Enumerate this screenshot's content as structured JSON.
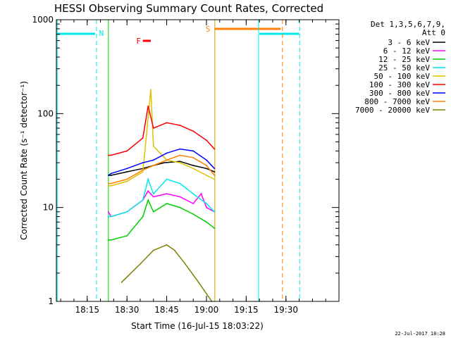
{
  "chart_data": {
    "type": "line",
    "title": "HESSI Observing Summary Count Rates, Corrected",
    "xlabel": "Start Time (16-Jul-15 18:03:22)",
    "ylabel": "Corrected Count Rate (s⁻¹ detector⁻¹)",
    "y_scale": "log",
    "ylim": [
      1,
      1000
    ],
    "xlim": [
      "18:03:22",
      "19:50:00"
    ],
    "x_ticks": [
      "18:15",
      "18:30",
      "18:45",
      "19:00",
      "19:15",
      "19:30"
    ],
    "y_ticks": [
      "1",
      "10",
      "100",
      "1000"
    ],
    "legend_header": [
      "Det 1,3,5,6,7,9,",
      "Att 0"
    ],
    "legend_position": "right",
    "timestamp": "22-Jul-2017 18:28",
    "series": [
      {
        "name": "3 - 6 keV",
        "color": "#000000",
        "x": [
          "18:23",
          "18:24",
          "18:30",
          "18:36",
          "18:40",
          "18:44",
          "18:50",
          "18:55",
          "19:00",
          "19:03"
        ],
        "y": [
          22,
          22,
          24,
          26,
          28,
          30,
          31,
          28,
          26,
          24
        ]
      },
      {
        "name": "6 - 12 keV",
        "color": "#ff00ff",
        "x": [
          "18:23",
          "18:24",
          "18:30",
          "18:36",
          "18:38",
          "18:40",
          "18:45",
          "18:50",
          "18:55",
          "18:58",
          "19:00",
          "19:03"
        ],
        "y": [
          9,
          8,
          9,
          12,
          15,
          13,
          14,
          13,
          11,
          14,
          10,
          9
        ]
      },
      {
        "name": "12 - 25 keV",
        "color": "#00d000",
        "x": [
          "18:23",
          "18:24",
          "18:30",
          "18:36",
          "18:38",
          "18:40",
          "18:45",
          "18:50",
          "18:55",
          "19:00",
          "19:03"
        ],
        "y": [
          4.5,
          4.5,
          5,
          8,
          12,
          9,
          11,
          10,
          8.5,
          7,
          6
        ]
      },
      {
        "name": "25 - 50 keV",
        "color": "#00e8e8",
        "x": [
          "18:23",
          "18:24",
          "18:30",
          "18:36",
          "18:38",
          "18:40",
          "18:45",
          "18:50",
          "18:55",
          "19:00",
          "19:03"
        ],
        "y": [
          8,
          8,
          9,
          12,
          20,
          14,
          20,
          18,
          14,
          11,
          9
        ]
      },
      {
        "name": "50 - 100 keV",
        "color": "#e0c000",
        "x": [
          "18:23",
          "18:24",
          "18:30",
          "18:36",
          "18:38",
          "18:39",
          "18:40",
          "18:45",
          "18:50",
          "18:55",
          "19:00",
          "19:03"
        ],
        "y": [
          17,
          17,
          19,
          24,
          90,
          180,
          45,
          32,
          30,
          26,
          22,
          20
        ]
      },
      {
        "name": "100 - 300 keV",
        "color": "#ff0000",
        "x": [
          "18:23",
          "18:24",
          "18:30",
          "18:36",
          "18:38",
          "18:40",
          "18:45",
          "18:50",
          "18:55",
          "19:00",
          "19:03"
        ],
        "y": [
          36,
          36,
          40,
          55,
          120,
          70,
          80,
          75,
          65,
          52,
          42
        ]
      },
      {
        "name": "300 - 800 keV",
        "color": "#0000ff",
        "x": [
          "18:23",
          "18:24",
          "18:30",
          "18:36",
          "18:40",
          "18:45",
          "18:50",
          "18:55",
          "19:00",
          "19:03"
        ],
        "y": [
          22,
          23,
          26,
          30,
          32,
          38,
          42,
          40,
          32,
          26
        ]
      },
      {
        "name": "800 - 7000 keV",
        "color": "#ff8000",
        "x": [
          "18:23",
          "18:24",
          "18:30",
          "18:36",
          "18:40",
          "18:45",
          "18:50",
          "18:55",
          "19:00",
          "19:03"
        ],
        "y": [
          18,
          18,
          20,
          25,
          28,
          32,
          36,
          34,
          28,
          22
        ]
      },
      {
        "name": "7000 - 20000 keV",
        "color": "#808000",
        "x": [
          "18:28",
          "18:35",
          "18:40",
          "18:45",
          "18:48",
          "18:52",
          "18:57",
          "19:02"
        ],
        "y": [
          1.6,
          2.5,
          3.5,
          4,
          3.5,
          2.5,
          1.6,
          1
        ]
      }
    ],
    "flags": [
      {
        "label": "N",
        "color": "#00e8e8"
      },
      {
        "label": "F",
        "color": "#ff0000"
      },
      {
        "label": "S",
        "color": "#ff8000"
      }
    ]
  }
}
